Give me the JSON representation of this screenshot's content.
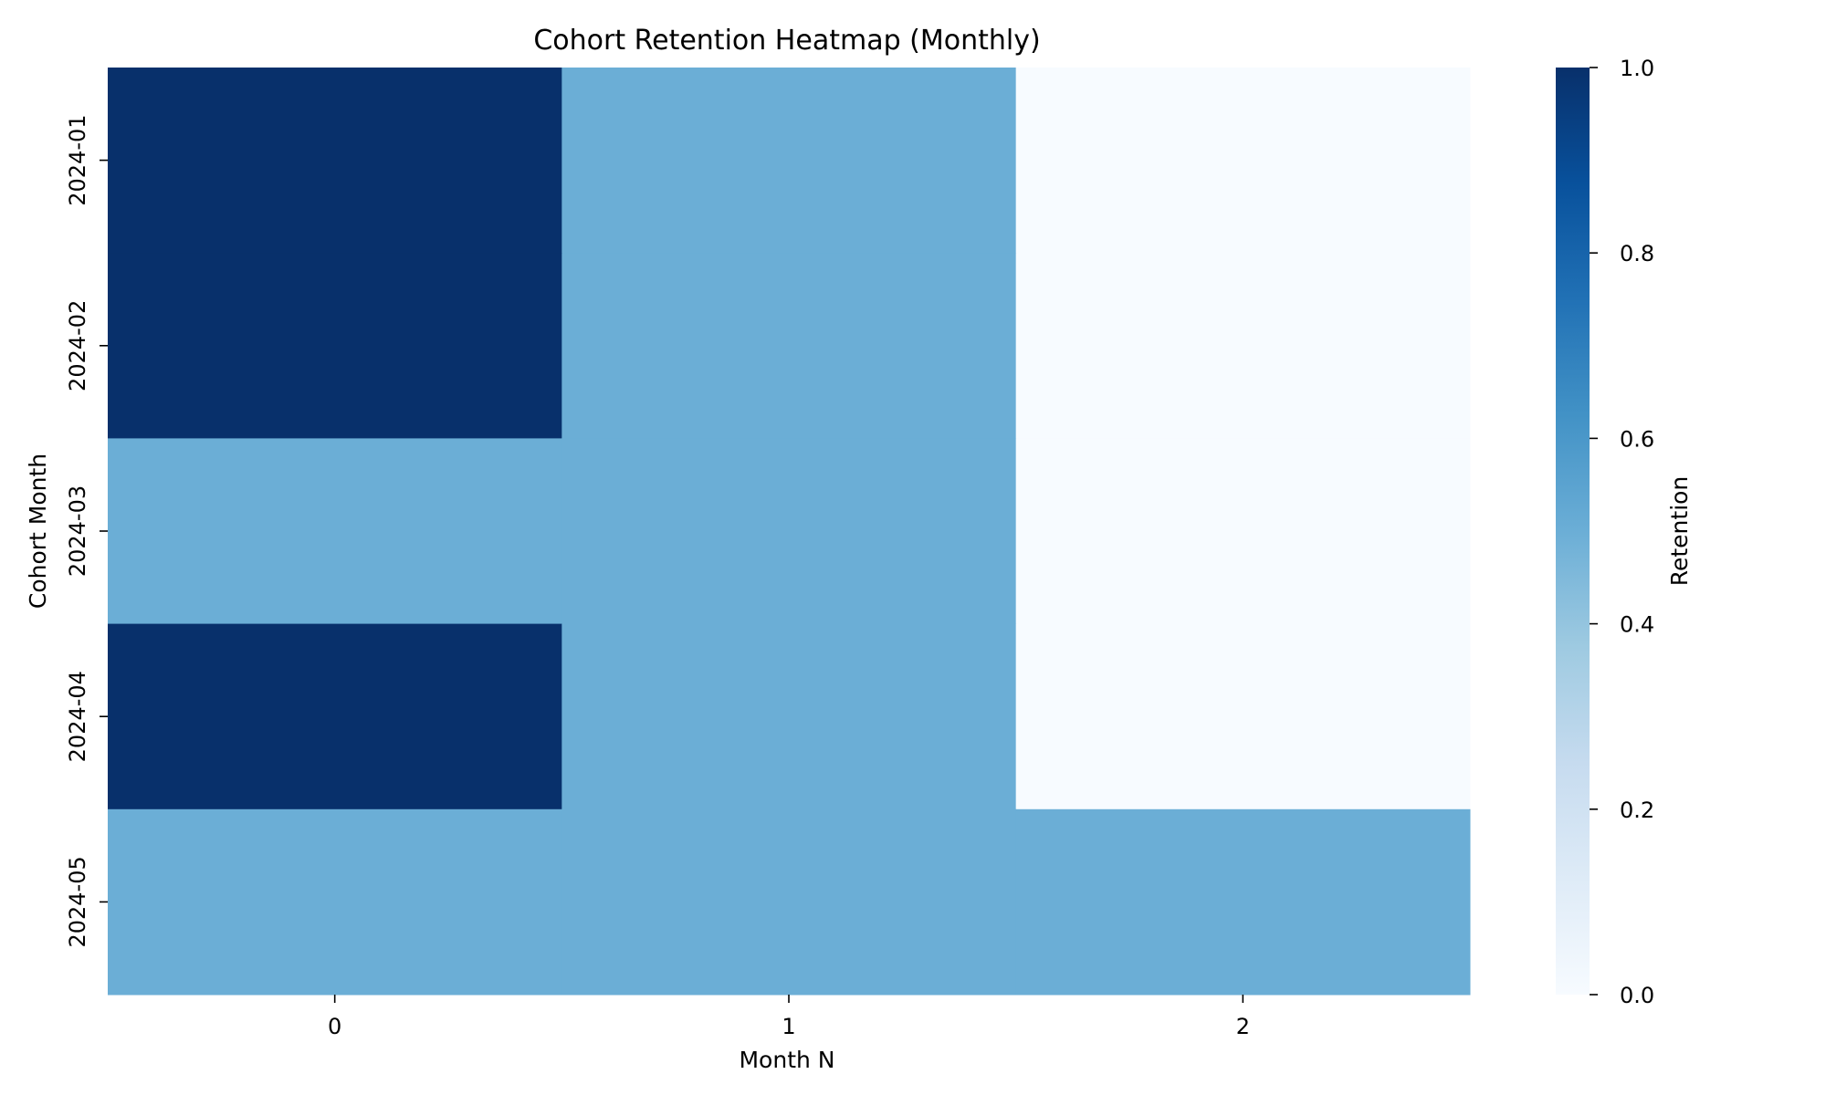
{
  "chart_data": {
    "type": "heatmap",
    "title": "Cohort Retention Heatmap (Monthly)",
    "xlabel": "Month N",
    "ylabel": "Cohort Month",
    "x_categories": [
      "0",
      "1",
      "2"
    ],
    "y_categories": [
      "2024-01",
      "2024-02",
      "2024-03",
      "2024-04",
      "2024-05"
    ],
    "values": [
      [
        1.0,
        0.5,
        0.0
      ],
      [
        1.0,
        0.5,
        0.0
      ],
      [
        0.5,
        0.5,
        0.0
      ],
      [
        1.0,
        0.5,
        0.0
      ],
      [
        0.5,
        0.5,
        0.5
      ]
    ],
    "colorbar": {
      "label": "Retention",
      "range": [
        0.0,
        1.0
      ],
      "ticks": [
        "0.0",
        "0.2",
        "0.4",
        "0.6",
        "0.8",
        "1.0"
      ],
      "colormap": "Blues"
    },
    "colors": {
      "low": "#f7fbff",
      "mid": "#6baed6",
      "high": "#08306b"
    }
  }
}
